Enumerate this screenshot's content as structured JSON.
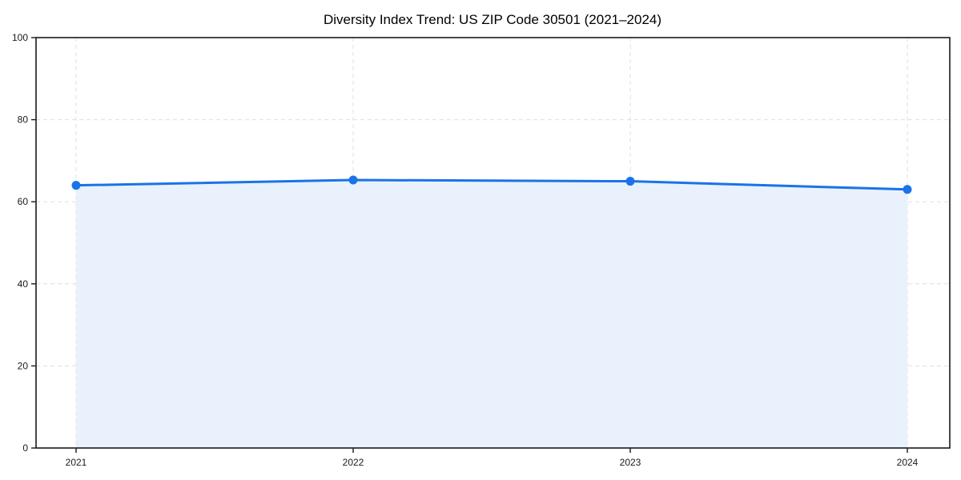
{
  "chart_data": {
    "type": "area",
    "title": "Diversity Index Trend: US ZIP Code 30501 (2021–2024)",
    "categories": [
      "2021",
      "2022",
      "2023",
      "2024"
    ],
    "values": [
      64,
      65.3,
      65,
      63
    ],
    "xlabel": "",
    "ylabel": "",
    "ylim": [
      0,
      100
    ],
    "yticks": [
      0,
      20,
      40,
      60,
      80,
      100
    ],
    "grid": "dashed-both-axes",
    "legend": "none",
    "marker": "circle",
    "colors": {
      "line": "#1a73e8",
      "fill": "#e9f1fc",
      "grid": "#dfdfdf",
      "axis": "#1a1a1a",
      "text": "#000000"
    }
  }
}
